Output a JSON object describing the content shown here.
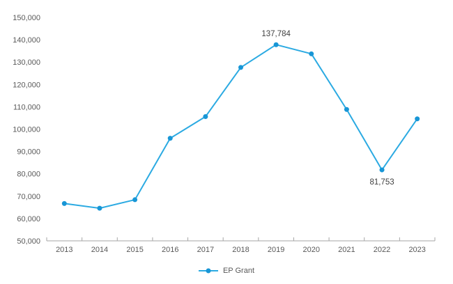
{
  "chart": {
    "legend_label": "EP Grant",
    "colors": {
      "line": "#2BAAE2",
      "marker": "#1896D6",
      "axis": "#A6A6A6",
      "tick_label": "#595959",
      "data_label": "#404040"
    }
  },
  "chart_data": {
    "type": "line",
    "title": "",
    "xlabel": "",
    "ylabel": "",
    "categories": [
      "2013",
      "2014",
      "2015",
      "2016",
      "2017",
      "2018",
      "2019",
      "2020",
      "2021",
      "2022",
      "2023"
    ],
    "series": [
      {
        "name": "EP Grant",
        "values": [
          66700,
          64600,
          68400,
          95900,
          105600,
          127600,
          137784,
          133700,
          108800,
          81753,
          104600
        ]
      }
    ],
    "ylim": [
      50000,
      150000
    ],
    "ytick_step": 10000,
    "grid": false,
    "legend_position": "bottom",
    "data_labels": [
      {
        "index": 6,
        "text": "137,784",
        "position": "above"
      },
      {
        "index": 9,
        "text": "81,753",
        "position": "below"
      }
    ]
  }
}
